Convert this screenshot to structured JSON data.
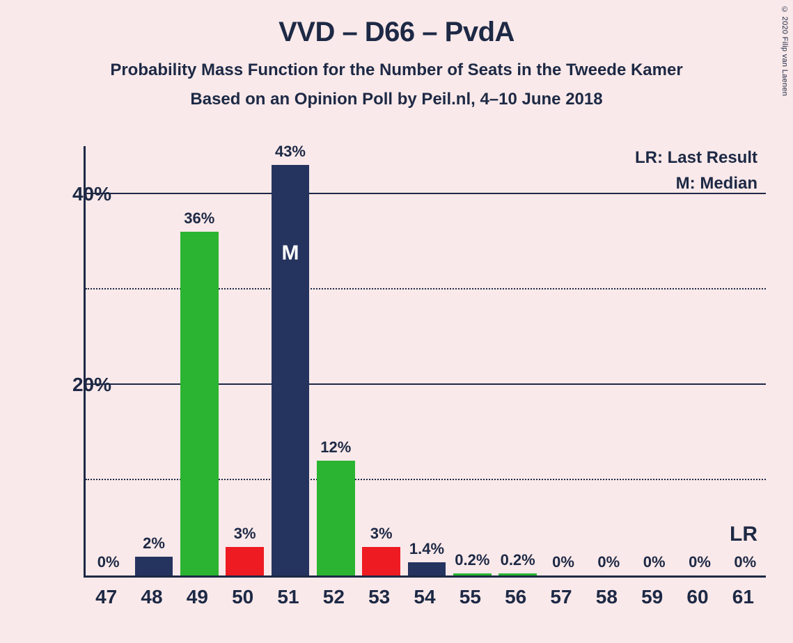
{
  "copyright": "© 2020 Filip van Laenen",
  "title": "VVD – D66 – PvdA",
  "subtitle": "Probability Mass Function for the Number of Seats in the Tweede Kamer",
  "subtitle2": "Based on an Opinion Poll by Peil.nl, 4–10 June 2018",
  "chart": {
    "type": "bar",
    "background_color": "#fae9ea",
    "axis_color": "#1d2945",
    "text_color": "#1d2945",
    "ylim_max": 45,
    "y_major_ticks": [
      20,
      40
    ],
    "y_major_labels": [
      "20%",
      "40%"
    ],
    "y_minor_ticks": [
      10,
      30
    ],
    "bar_width": 0.84,
    "categories": [
      "47",
      "48",
      "49",
      "50",
      "51",
      "52",
      "53",
      "54",
      "55",
      "56",
      "57",
      "58",
      "59",
      "60",
      "61"
    ],
    "values": [
      0,
      2,
      36,
      3,
      43,
      12,
      3,
      1.4,
      0.2,
      0.2,
      0,
      0,
      0,
      0,
      0
    ],
    "value_labels": [
      "0%",
      "2%",
      "36%",
      "3%",
      "43%",
      "12%",
      "3%",
      "1.4%",
      "0.2%",
      "0.2%",
      "0%",
      "0%",
      "0%",
      "0%",
      "0%"
    ],
    "bar_colors": [
      "#25335f",
      "#25335f",
      "#2bb431",
      "#ee1b22",
      "#25335f",
      "#2bb431",
      "#ee1b22",
      "#25335f",
      "#2bb431",
      "#2bb431",
      "#25335f",
      "#25335f",
      "#25335f",
      "#25335f",
      "#25335f"
    ],
    "median_index": 4,
    "median_label": "M",
    "lr_index": 14,
    "lr_label": "LR",
    "legend": {
      "lr": "LR: Last Result",
      "m": "M: Median"
    }
  }
}
